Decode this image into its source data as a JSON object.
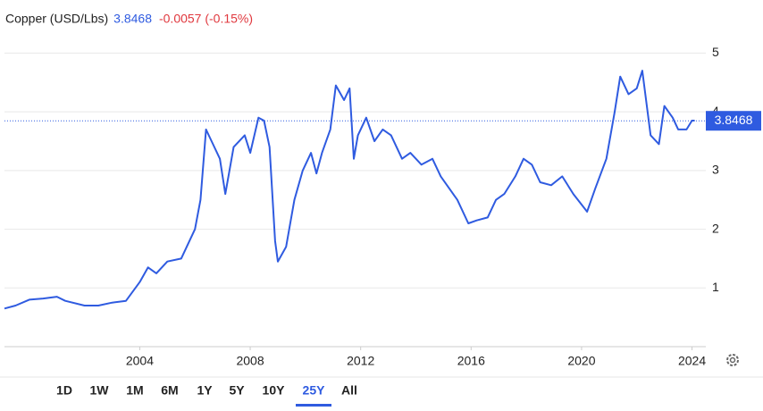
{
  "chart_data": {
    "type": "line",
    "title": "Copper (USD/Lbs)",
    "last_value": 3.8468,
    "change": "-0.0057 (-0.15%)",
    "color": "#2f5be0",
    "x": [
      1999.1,
      1999.5,
      2000.0,
      2000.5,
      2001.0,
      2001.3,
      2002.0,
      2002.5,
      2003.0,
      2003.5,
      2004.0,
      2004.3,
      2004.6,
      2005.0,
      2005.5,
      2006.0,
      2006.2,
      2006.4,
      2006.6,
      2006.9,
      2007.1,
      2007.4,
      2007.8,
      2008.0,
      2008.3,
      2008.5,
      2008.7,
      2008.9,
      2009.0,
      2009.3,
      2009.6,
      2009.9,
      2010.2,
      2010.4,
      2010.6,
      2010.9,
      2011.1,
      2011.4,
      2011.6,
      2011.75,
      2011.9,
      2012.2,
      2012.5,
      2012.8,
      2013.1,
      2013.5,
      2013.8,
      2014.2,
      2014.6,
      2014.9,
      2015.2,
      2015.5,
      2015.9,
      2016.2,
      2016.6,
      2016.9,
      2017.2,
      2017.6,
      2017.9,
      2018.2,
      2018.5,
      2018.9,
      2019.3,
      2019.7,
      2020.2,
      2020.5,
      2020.9,
      2021.2,
      2021.4,
      2021.7,
      2022.0,
      2022.2,
      2022.5,
      2022.8,
      2023.0,
      2023.3,
      2023.5,
      2023.8,
      2024.0,
      2024.1
    ],
    "values": [
      0.65,
      0.7,
      0.8,
      0.82,
      0.85,
      0.78,
      0.7,
      0.7,
      0.75,
      0.78,
      1.1,
      1.35,
      1.25,
      1.45,
      1.5,
      2.0,
      2.5,
      3.7,
      3.5,
      3.2,
      2.6,
      3.4,
      3.6,
      3.3,
      3.9,
      3.85,
      3.4,
      1.8,
      1.45,
      1.7,
      2.5,
      3.0,
      3.3,
      2.95,
      3.3,
      3.7,
      4.45,
      4.2,
      4.4,
      3.2,
      3.6,
      3.9,
      3.5,
      3.7,
      3.6,
      3.2,
      3.3,
      3.1,
      3.2,
      2.9,
      2.7,
      2.5,
      2.1,
      2.15,
      2.2,
      2.5,
      2.6,
      2.9,
      3.2,
      3.1,
      2.8,
      2.75,
      2.9,
      2.6,
      2.3,
      2.7,
      3.2,
      4.0,
      4.6,
      4.3,
      4.4,
      4.7,
      3.6,
      3.45,
      4.1,
      3.9,
      3.7,
      3.7,
      3.85,
      3.85
    ],
    "xlim": [
      1999.1,
      2024.5
    ],
    "xticks": [
      2004,
      2008,
      2012,
      2016,
      2020,
      2024
    ],
    "ylim": [
      0,
      5.6
    ],
    "yticks": [
      1,
      2,
      3,
      4,
      5
    ],
    "grid": true,
    "range_buttons": [
      "1D",
      "1W",
      "1M",
      "6M",
      "1Y",
      "5Y",
      "10Y",
      "25Y",
      "All"
    ],
    "selected": "25Y"
  }
}
